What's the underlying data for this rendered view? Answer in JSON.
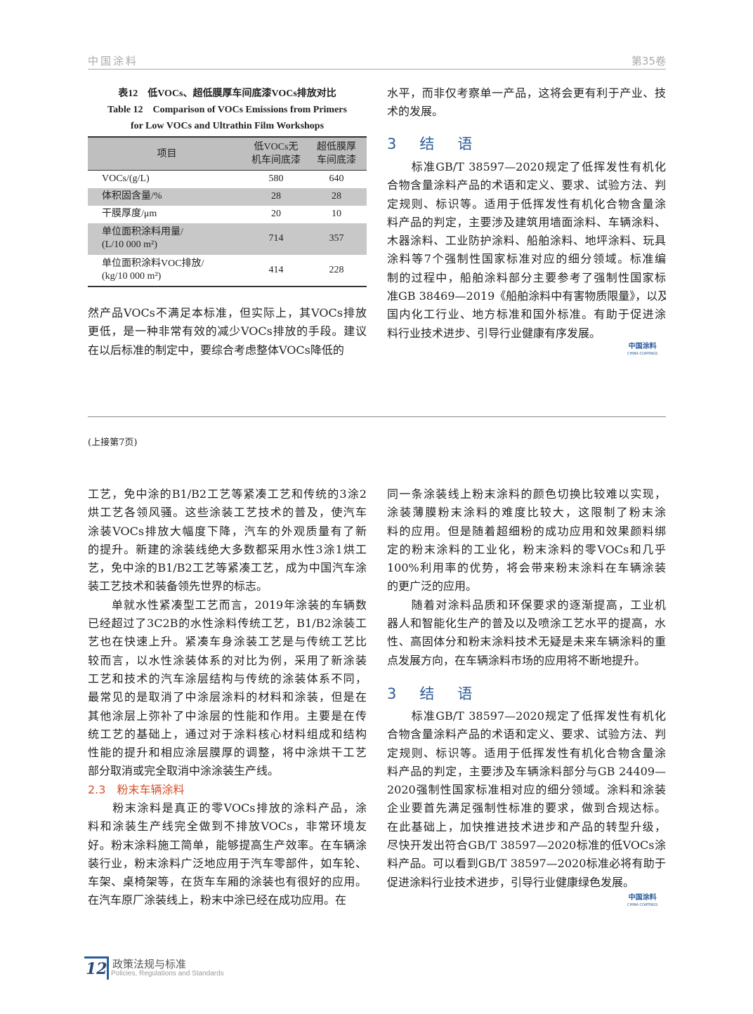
{
  "header": {
    "journal": "中国涂料",
    "volume": "第35卷"
  },
  "table": {
    "caption_cn": "表12　低VOCs、超低膜厚车间底漆VOCs排放对比",
    "caption_en_1": "Table 12　Comparison of VOCs Emissions from Primers",
    "caption_en_2": "for Low VOCs and Ultrathin Film Workshops",
    "headers": [
      "项目",
      "低VOCs无\n机车间底漆",
      "超低膜厚\n车间底漆"
    ],
    "rows": [
      [
        "VOCs/(g/L)",
        "580",
        "640"
      ],
      [
        "体积固含量/%",
        "28",
        "28"
      ],
      [
        "干膜厚度/μm",
        "20",
        "10"
      ],
      [
        "单位面积涂料用量/\n(L/10 000 m²)",
        "714",
        "357"
      ],
      [
        "单位面积涂料VOC排放/\n(kg/10 000 m²)",
        "414",
        "228"
      ]
    ]
  },
  "top_left_lines": [
    "然产品VOCs不满足本标准，但实际上，其VOCs排放",
    "更低，是一种非常有效的减少VOCs排放的手段。建议",
    "在以后标准的制定中，要综合考虑整体VOCs降低的"
  ],
  "top_right_lines": [
    "水平，而非仅考察单一产品，这将会更有利于产业、技",
    "术的发展。"
  ],
  "top_heading": "3　结　语",
  "top_conclusion_lines": [
    "　　标准GB/T 38597—2020规定了低挥发性有机化",
    "合物含量涂料产品的术语和定义、要求、试验方法、判",
    "定规则、标识等。适用于低挥发性有机化合物含量涂",
    "料产品的判定，主要涉及建筑用墙面涂料、车辆涂料、",
    "木器涂料、工业防护涂料、船舶涂料、地坪涂料、玩具",
    "涂料等7个强制性国家标准对应的细分领域。标准编",
    "制的过程中，船舶涂料部分主要参考了强制性国家标",
    "准GB 38469—2019《船舶涂料中有害物质限量》，以及",
    "国内化工行业、地方标准和国外标准。有助于促进涂",
    "料行业技术进步、引导行业健康有序发展。"
  ],
  "logo": {
    "cn": "中国涂料",
    "en": "CHINA COATINGS"
  },
  "continued": "(上接第7页)",
  "bottom_left_lines": [
    "工艺，免中涂的B1/B2工艺等紧凑工艺和传统的3涂2",
    "烘工艺各领风骚。这些涂装工艺技术的普及，使汽车",
    "涂装VOCs排放大幅度下降，汽车的外观质量有了新",
    "的提升。新建的涂装线绝大多数都采用水性3涂1烘工",
    "艺，免中涂的B1/B2工艺等紧凑工艺，成为中国汽车涂",
    "装工艺技术和装备领先世界的标志。",
    "　　单就水性紧凑型工艺而言，2019年涂装的车辆数",
    "已经超过了3C2B的水性涂料传统工艺，B1/B2涂装工",
    "艺也在快速上升。紧凑车身涂装工艺是与传统工艺比",
    "较而言，以水性涂装体系的对比为例，采用了新涂装",
    "工艺和技术的汽车涂层结构与传统的涂装体系不同，",
    "最常见的是取消了中涂层涂料的材料和涂装，但是在",
    "其他涂层上弥补了中涂层的性能和作用。主要是在传",
    "统工艺的基础上，通过对于涂料核心材料组成和结构",
    "性能的提升和相应涂层膜厚的调整，将中涂烘干工艺",
    "部分取消或完全取消中涂涂装生产线。"
  ],
  "section_23": "2.3　粉末车辆涂料",
  "bottom_left_lines2": [
    "　　粉末涂料是真正的零VOCs排放的涂料产品，涂",
    "料和涂装生产线完全做到不排放VOCs，非常环境友",
    "好。粉末涂料施工简单，能够提高生产效率。在车辆涂",
    "装行业，粉末涂料广泛地应用于汽车零部件，如车轮、",
    "车架、桌椅架等，在货车车厢的涂装也有很好的应用。",
    "在汽车原厂涂装线上，粉末中涂已经在成功应用。在"
  ],
  "bottom_right_lines": [
    "同一条涂装线上粉末涂料的颜色切换比较难以实现，",
    "涂装薄膜粉末涂料的难度比较大，这限制了粉末涂",
    "料的应用。但是随着超细粉的成功应用和效果颜料绑",
    "定的粉末涂料的工业化，粉末涂料的零VOCs和几乎",
    "100%利用率的优势，将会带来粉末涂料在车辆涂装",
    "的更广泛的应用。",
    "　　随着对涂料品质和环保要求的逐渐提高，工业机",
    "器人和智能化生产的普及以及喷涂工艺水平的提高，水",
    "性、高固体分和粉末涂料技术无疑是未来车辆涂料的重",
    "点发展方向，在车辆涂料市场的应用将不断地提升。"
  ],
  "bottom_heading": "3　结　语",
  "bottom_conclusion_lines": [
    "　　标准GB/T 38597—2020规定了低挥发性有机化",
    "合物含量涂料产品的术语和定义、要求、试验方法、判",
    "定规则、标识等。适用于低挥发性有机化合物含量涂",
    "料产品的判定，主要涉及车辆涂料部分与GB 24409—",
    "2020强制性国家标准相对应的细分领域。涂料和涂装",
    "企业要首先满足强制性标准的要求，做到合规达标。",
    "在此基础上，加快推进技术进步和产品的转型升级，",
    "尽快开发出符合GB/T 38597—2020标准的低VOCs涂",
    "料产品。可以看到GB/T 38597—2020标准必将有助于",
    "促进涂料行业技术进步，引导行业健康绿色发展。"
  ],
  "footer": {
    "page": "12",
    "section_cn": "政策法规与标准",
    "section_en": "Policies, Regulations and Standards"
  },
  "colors": {
    "accent_blue": "#2a5c9a",
    "section_red": "#d4522a"
  }
}
